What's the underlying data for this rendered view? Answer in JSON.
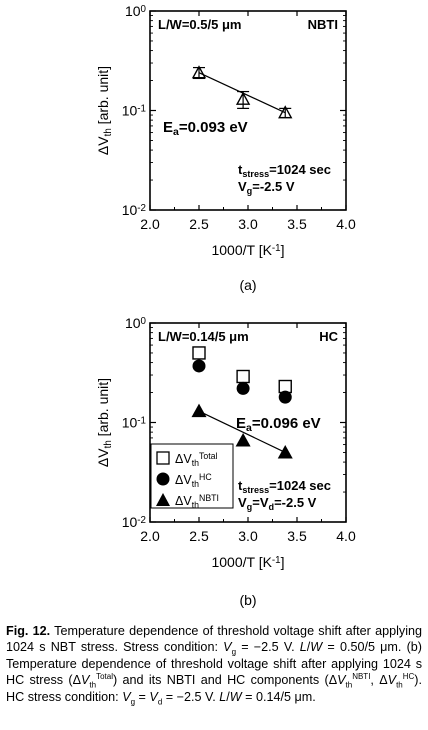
{
  "chart_data": [
    {
      "type": "scatter",
      "panel_label": "(a)",
      "xlabel": "1000/T [K",
      "xlabel_sup": "-1",
      "xlabel_end": "]",
      "ylabel": "ΔV",
      "ylabel_sub": "th",
      "ylabel_end": " [arb. unit]",
      "xlim": [
        2.0,
        4.0
      ],
      "ylim": [
        0.01,
        1
      ],
      "yscale": "log",
      "xticks": [
        "2.0",
        "2.5",
        "3.0",
        "3.5",
        "4.0"
      ],
      "yticks": [
        {
          "base": "10",
          "exp": "0",
          "v": 1
        },
        {
          "base": "10",
          "exp": "-1",
          "v": 0.1
        },
        {
          "base": "10",
          "exp": "-2",
          "v": 0.01
        }
      ],
      "corner_left": "L/W=0.5/5 μm",
      "corner_right": "NBTI",
      "ea_text": "E",
      "ea_sub": "a",
      "ea_end": "=0.093 eV",
      "stress_t1": "t",
      "stress_t1_sub": "stress",
      "stress_t1_end": "=1024 sec",
      "stress_t2": "V",
      "stress_t2_sub": "g",
      "stress_t2_end": "=-2.5 V",
      "series": [
        {
          "marker": "triangle-errorbar",
          "x": [
            2.5,
            2.95,
            3.38
          ],
          "y": [
            0.24,
            0.13,
            0.095
          ],
          "err_lo": [
            0.21,
            0.105,
            0.085
          ],
          "err_hi": [
            0.27,
            0.155,
            0.105
          ]
        }
      ],
      "fit_line": {
        "x": [
          2.5,
          3.38
        ],
        "y": [
          0.24,
          0.095
        ]
      }
    },
    {
      "type": "scatter",
      "panel_label": "(b)",
      "xlabel": "1000/T [K",
      "xlabel_sup": "-1",
      "xlabel_end": "]",
      "ylabel": "ΔV",
      "ylabel_sub": "th",
      "ylabel_end": " [arb. unit]",
      "xlim": [
        2.0,
        4.0
      ],
      "ylim": [
        0.01,
        1
      ],
      "yscale": "log",
      "xticks": [
        "2.0",
        "2.5",
        "3.0",
        "3.5",
        "4.0"
      ],
      "yticks": [
        {
          "base": "10",
          "exp": "0",
          "v": 1
        },
        {
          "base": "10",
          "exp": "-1",
          "v": 0.1
        },
        {
          "base": "10",
          "exp": "-2",
          "v": 0.01
        }
      ],
      "corner_left": "L/W=0.14/5 μm",
      "corner_right": "HC",
      "ea_text": "E",
      "ea_sub": "a",
      "ea_end": "=0.096 eV",
      "stress_t1": "t",
      "stress_t1_sub": "stress",
      "stress_t1_end": "=1024 sec",
      "stress_t2": "V",
      "stress_t2_sub": "g",
      "stress_t2_mid": "=V",
      "stress_t2_sub2": "d",
      "stress_t2_end": "=-2.5 V",
      "series": [
        {
          "name": "ΔV",
          "name_sub": "th",
          "name_sup": "Total",
          "marker": "open-square",
          "x": [
            2.5,
            2.95,
            3.38
          ],
          "y": [
            0.5,
            0.29,
            0.23
          ]
        },
        {
          "name": "ΔV",
          "name_sub": "th",
          "name_sup": "HC",
          "marker": "filled-circle",
          "x": [
            2.5,
            2.95,
            3.38
          ],
          "y": [
            0.37,
            0.22,
            0.18
          ]
        },
        {
          "name": "ΔV",
          "name_sub": "th",
          "name_sup": "NBTI",
          "marker": "filled-triangle",
          "x": [
            2.5,
            2.95,
            3.38
          ],
          "y": [
            0.13,
            0.066,
            0.05
          ]
        }
      ],
      "fit_line": {
        "x": [
          2.5,
          3.38
        ],
        "y": [
          0.13,
          0.05
        ]
      },
      "legend_position": "bottom-left"
    }
  ],
  "caption": {
    "fig": "Fig. 12.",
    "text_a": "Temperature dependence of threshold voltage shift after applying 1024 s NBT stress. Stress condition:",
    "cond_a": "= −2.5 V.",
    "lw_a": "= 0.50/5 μm.",
    "text_b": "(b) Temperature dependence of threshold voltage shift after applying 1024 s HC stress",
    "text_b2": "and its NBTI and HC components",
    "text_b3": "HC stress condition:",
    "cond_b": "= −2.5 V.",
    "lw_b": "= 0.14/5 μm."
  }
}
